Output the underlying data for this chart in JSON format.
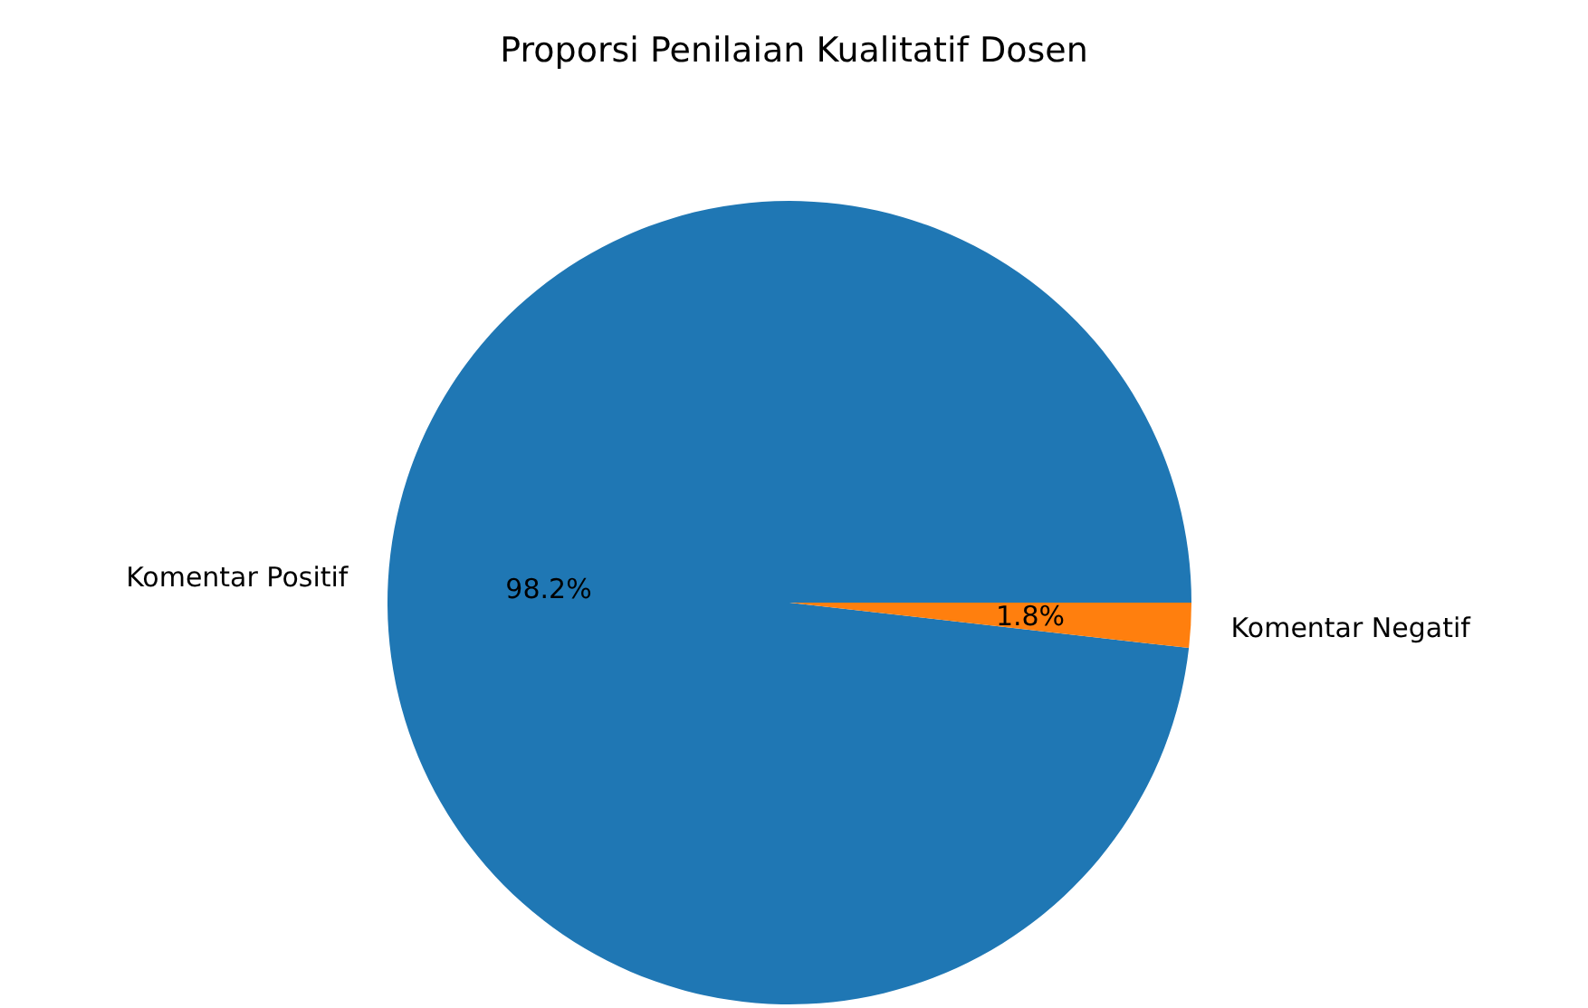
{
  "chart_data": {
    "type": "pie",
    "title": "Proporsi Penilaian Kualitatif Dosen",
    "categories": [
      "Komentar Positif",
      "Komentar Negatif"
    ],
    "values": [
      98.2,
      1.8
    ],
    "colors": [
      "#1f77b4",
      "#ff7f0e"
    ],
    "value_labels": [
      "98.2%",
      "1.8%"
    ]
  }
}
